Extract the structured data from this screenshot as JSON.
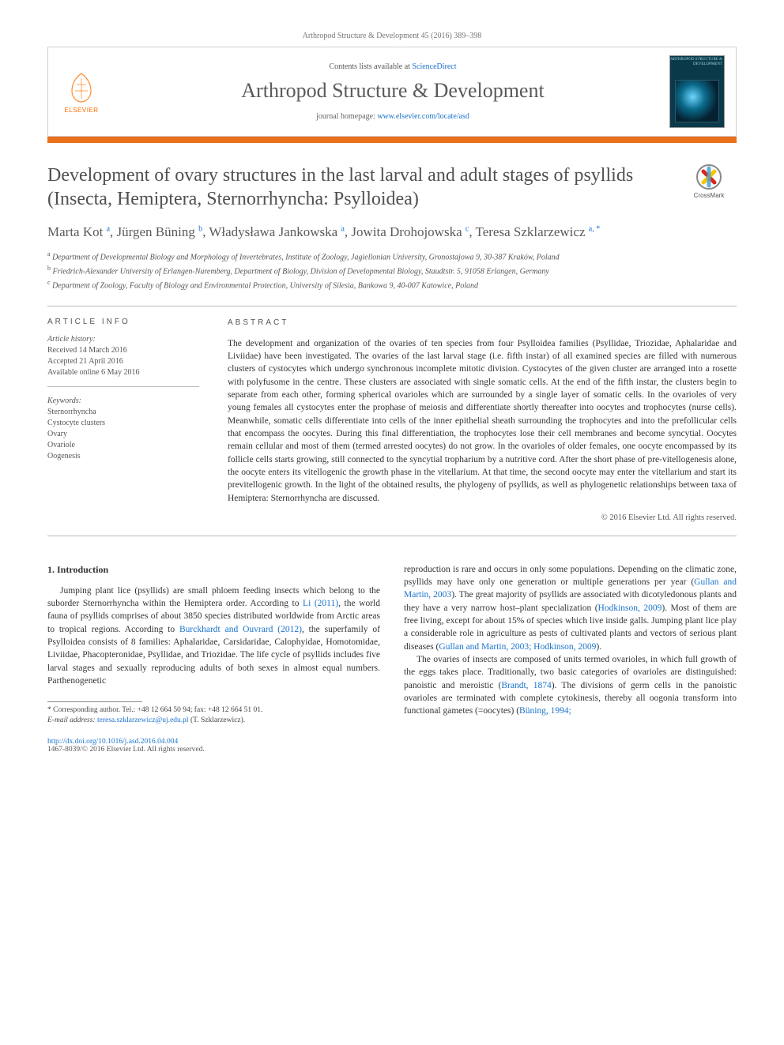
{
  "journal_ref": "Arthropod Structure & Development 45 (2016) 389–398",
  "header": {
    "contents_prefix": "Contents lists available at ",
    "contents_link": "ScienceDirect",
    "journal_title": "Arthropod Structure & Development",
    "homepage_prefix": "journal homepage: ",
    "homepage_url": "www.elsevier.com/locate/asd",
    "elsevier_wordmark": "ELSEVIER",
    "cover_label": "ARTHROPOD STRUCTURE & DEVELOPMENT"
  },
  "crossmark_label": "CrossMark",
  "title": "Development of ovary structures in the last larval and adult stages of psyllids (Insecta, Hemiptera, Sternorrhyncha: Psylloidea)",
  "authors_html": "Marta Kot <sup>a</sup>, Jürgen Büning <sup>b</sup>, Władysława Jankowska <sup>a</sup>, Jowita Drohojowska <sup>c</sup>, Teresa Szklarzewicz <sup>a, *</sup>",
  "affiliations": {
    "a": "Department of Developmental Biology and Morphology of Invertebrates, Institute of Zoology, Jagiellonian University, Gronostajowa 9, 30-387 Kraków, Poland",
    "b": "Friedrich-Alexander University of Erlangen-Nuremberg, Department of Biology, Division of Developmental Biology, Staudtstr. 5, 91058 Erlangen, Germany",
    "c": "Department of Zoology, Faculty of Biology and Environmental Protection, University of Silesia, Bankowa 9, 40-007 Katowice, Poland"
  },
  "article_info": {
    "heading": "ARTICLE INFO",
    "history_label": "Article history:",
    "received": "Received 14 March 2016",
    "accepted": "Accepted 21 April 2016",
    "online": "Available online 6 May 2016",
    "keywords_label": "Keywords:",
    "keywords": [
      "Sternorrhyncha",
      "Cystocyte clusters",
      "Ovary",
      "Ovariole",
      "Oogenesis"
    ]
  },
  "abstract": {
    "heading": "ABSTRACT",
    "text": "The development and organization of the ovaries of ten species from four Psylloidea families (Psyllidae, Triozidae, Aphalaridae and Liviidae) have been investigated. The ovaries of the last larval stage (i.e. fifth instar) of all examined species are filled with numerous clusters of cystocytes which undergo synchronous incomplete mitotic division. Cystocytes of the given cluster are arranged into a rosette with polyfusome in the centre. These clusters are associated with single somatic cells. At the end of the fifth instar, the clusters begin to separate from each other, forming spherical ovarioles which are surrounded by a single layer of somatic cells. In the ovarioles of very young females all cystocytes enter the prophase of meiosis and differentiate shortly thereafter into oocytes and trophocytes (nurse cells). Meanwhile, somatic cells differentiate into cells of the inner epithelial sheath surrounding the trophocytes and into the prefollicular cells that encompass the oocytes. During this final differentiation, the trophocytes lose their cell membranes and become syncytial. Oocytes remain cellular and most of them (termed arrested oocytes) do not grow. In the ovarioles of older females, one oocyte encompassed by its follicle cells starts growing, still connected to the syncytial tropharium by a nutritive cord. After the short phase of pre-vitellogenesis alone, the oocyte enters its vitellogenic the growth phase in the vitellarium. At that time, the second oocyte may enter the vitellarium and start its previtellogenic growth. In the light of the obtained results, the phylogeny of psyllids, as well as phylogenetic relationships between taxa of Hemiptera: Sternorrhyncha are discussed.",
    "copyright": "© 2016 Elsevier Ltd. All rights reserved."
  },
  "section1_heading": "1. Introduction",
  "body": {
    "col1_p1_a": "Jumping plant lice (psyllids) are small phloem feeding insects which belong to the suborder Sternorrhyncha within the Hemiptera order. According to ",
    "col1_ref1": "Li (2011)",
    "col1_p1_b": ", the world fauna of psyllids comprises of about 3850 species distributed worldwide from Arctic areas to tropical regions. According to ",
    "col1_ref2": "Burckhardt and Ouvrard (2012)",
    "col1_p1_c": ", the superfamily of Psylloidea consists of 8 families: Aphalaridae, Carsidaridae, Calophyidae, Homotomidae, Liviidae, Phacopteronidae, Psyllidae, and Triozidae. The life cycle of psyllids includes five larval stages and sexually reproducing adults of both sexes in almost equal numbers. Parthenogenetic",
    "col2_p1_a": "reproduction is rare and occurs in only some populations. Depending on the climatic zone, psyllids may have only one generation or multiple generations per year (",
    "col2_ref1": "Gullan and Martin, 2003",
    "col2_p1_b": "). The great majority of psyllids are associated with dicotyledonous plants and they have a very narrow host–plant specialization (",
    "col2_ref2": "Hodkinson, 2009",
    "col2_p1_c": "). Most of them are free living, except for about 15% of species which live inside galls. Jumping plant lice play a considerable role in agriculture as pests of cultivated plants and vectors of serious plant diseases (",
    "col2_ref3": "Gullan and Martin, 2003; Hodkinson, 2009",
    "col2_p1_d": ").",
    "col2_p2_a": "The ovaries of insects are composed of units termed ovarioles, in which full growth of the eggs takes place. Traditionally, two basic categories of ovarioles are distinguished: panoistic and meroistic (",
    "col2_ref4": "Brandt, 1874",
    "col2_p2_b": "). The divisions of germ cells in the panoistic ovarioles are terminated with complete cytokinesis, thereby all oogonia transform into functional gametes (=oocytes) (",
    "col2_ref5": "Büning, 1994;",
    "col2_p2_c": ""
  },
  "footnotes": {
    "corr": "* Corresponding author. Tel.: +48 12 664 50 94; fax: +48 12 664 51 01.",
    "email_label": "E-mail address: ",
    "email": "teresa.szklarzewicz@uj.edu.pl",
    "email_suffix": " (T. Szklarzewicz)."
  },
  "footer": {
    "doi": "http://dx.doi.org/10.1016/j.asd.2016.04.004",
    "issn_line": "1467-8039/© 2016 Elsevier Ltd. All rights reserved."
  },
  "colors": {
    "orange_bar": "#e9711c",
    "link": "#1a73cc",
    "cover_bg": "#0a3a4a"
  }
}
